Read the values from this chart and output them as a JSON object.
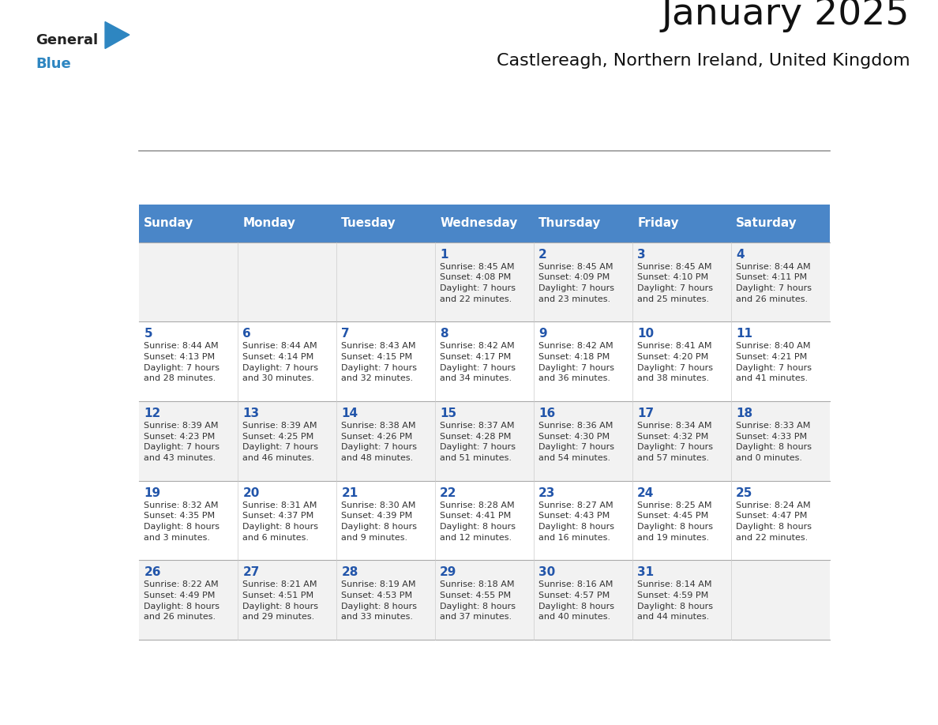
{
  "title": "January 2025",
  "subtitle": "Castlereagh, Northern Ireland, United Kingdom",
  "header_bg": "#4a86c8",
  "header_text": "#ffffff",
  "header_days": [
    "Sunday",
    "Monday",
    "Tuesday",
    "Wednesday",
    "Thursday",
    "Friday",
    "Saturday"
  ],
  "row_bg_odd": "#f2f2f2",
  "row_bg_even": "#ffffff",
  "cell_border": "#aaaaaa",
  "day_number_color": "#2255aa",
  "cell_text_color": "#333333",
  "general_color": "#222222",
  "blue_color": "#2e86c1",
  "weeks": [
    [
      {
        "day": "",
        "info": ""
      },
      {
        "day": "",
        "info": ""
      },
      {
        "day": "",
        "info": ""
      },
      {
        "day": "1",
        "info": "Sunrise: 8:45 AM\nSunset: 4:08 PM\nDaylight: 7 hours\nand 22 minutes."
      },
      {
        "day": "2",
        "info": "Sunrise: 8:45 AM\nSunset: 4:09 PM\nDaylight: 7 hours\nand 23 minutes."
      },
      {
        "day": "3",
        "info": "Sunrise: 8:45 AM\nSunset: 4:10 PM\nDaylight: 7 hours\nand 25 minutes."
      },
      {
        "day": "4",
        "info": "Sunrise: 8:44 AM\nSunset: 4:11 PM\nDaylight: 7 hours\nand 26 minutes."
      }
    ],
    [
      {
        "day": "5",
        "info": "Sunrise: 8:44 AM\nSunset: 4:13 PM\nDaylight: 7 hours\nand 28 minutes."
      },
      {
        "day": "6",
        "info": "Sunrise: 8:44 AM\nSunset: 4:14 PM\nDaylight: 7 hours\nand 30 minutes."
      },
      {
        "day": "7",
        "info": "Sunrise: 8:43 AM\nSunset: 4:15 PM\nDaylight: 7 hours\nand 32 minutes."
      },
      {
        "day": "8",
        "info": "Sunrise: 8:42 AM\nSunset: 4:17 PM\nDaylight: 7 hours\nand 34 minutes."
      },
      {
        "day": "9",
        "info": "Sunrise: 8:42 AM\nSunset: 4:18 PM\nDaylight: 7 hours\nand 36 minutes."
      },
      {
        "day": "10",
        "info": "Sunrise: 8:41 AM\nSunset: 4:20 PM\nDaylight: 7 hours\nand 38 minutes."
      },
      {
        "day": "11",
        "info": "Sunrise: 8:40 AM\nSunset: 4:21 PM\nDaylight: 7 hours\nand 41 minutes."
      }
    ],
    [
      {
        "day": "12",
        "info": "Sunrise: 8:39 AM\nSunset: 4:23 PM\nDaylight: 7 hours\nand 43 minutes."
      },
      {
        "day": "13",
        "info": "Sunrise: 8:39 AM\nSunset: 4:25 PM\nDaylight: 7 hours\nand 46 minutes."
      },
      {
        "day": "14",
        "info": "Sunrise: 8:38 AM\nSunset: 4:26 PM\nDaylight: 7 hours\nand 48 minutes."
      },
      {
        "day": "15",
        "info": "Sunrise: 8:37 AM\nSunset: 4:28 PM\nDaylight: 7 hours\nand 51 minutes."
      },
      {
        "day": "16",
        "info": "Sunrise: 8:36 AM\nSunset: 4:30 PM\nDaylight: 7 hours\nand 54 minutes."
      },
      {
        "day": "17",
        "info": "Sunrise: 8:34 AM\nSunset: 4:32 PM\nDaylight: 7 hours\nand 57 minutes."
      },
      {
        "day": "18",
        "info": "Sunrise: 8:33 AM\nSunset: 4:33 PM\nDaylight: 8 hours\nand 0 minutes."
      }
    ],
    [
      {
        "day": "19",
        "info": "Sunrise: 8:32 AM\nSunset: 4:35 PM\nDaylight: 8 hours\nand 3 minutes."
      },
      {
        "day": "20",
        "info": "Sunrise: 8:31 AM\nSunset: 4:37 PM\nDaylight: 8 hours\nand 6 minutes."
      },
      {
        "day": "21",
        "info": "Sunrise: 8:30 AM\nSunset: 4:39 PM\nDaylight: 8 hours\nand 9 minutes."
      },
      {
        "day": "22",
        "info": "Sunrise: 8:28 AM\nSunset: 4:41 PM\nDaylight: 8 hours\nand 12 minutes."
      },
      {
        "day": "23",
        "info": "Sunrise: 8:27 AM\nSunset: 4:43 PM\nDaylight: 8 hours\nand 16 minutes."
      },
      {
        "day": "24",
        "info": "Sunrise: 8:25 AM\nSunset: 4:45 PM\nDaylight: 8 hours\nand 19 minutes."
      },
      {
        "day": "25",
        "info": "Sunrise: 8:24 AM\nSunset: 4:47 PM\nDaylight: 8 hours\nand 22 minutes."
      }
    ],
    [
      {
        "day": "26",
        "info": "Sunrise: 8:22 AM\nSunset: 4:49 PM\nDaylight: 8 hours\nand 26 minutes."
      },
      {
        "day": "27",
        "info": "Sunrise: 8:21 AM\nSunset: 4:51 PM\nDaylight: 8 hours\nand 29 minutes."
      },
      {
        "day": "28",
        "info": "Sunrise: 8:19 AM\nSunset: 4:53 PM\nDaylight: 8 hours\nand 33 minutes."
      },
      {
        "day": "29",
        "info": "Sunrise: 8:18 AM\nSunset: 4:55 PM\nDaylight: 8 hours\nand 37 minutes."
      },
      {
        "day": "30",
        "info": "Sunrise: 8:16 AM\nSunset: 4:57 PM\nDaylight: 8 hours\nand 40 minutes."
      },
      {
        "day": "31",
        "info": "Sunrise: 8:14 AM\nSunset: 4:59 PM\nDaylight: 8 hours\nand 44 minutes."
      },
      {
        "day": "",
        "info": ""
      }
    ]
  ]
}
